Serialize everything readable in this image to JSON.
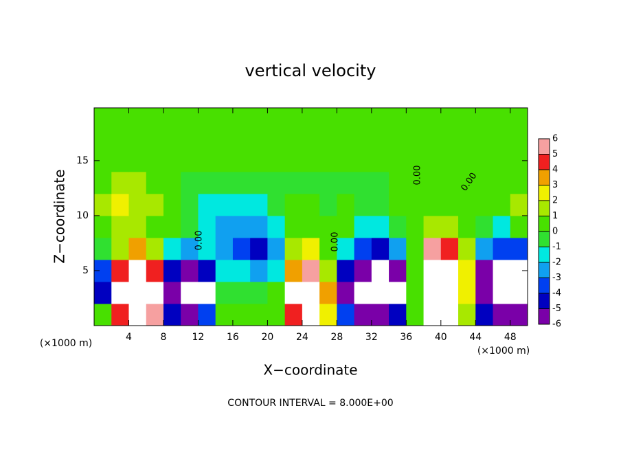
{
  "chart_data": {
    "type": "heatmap",
    "title": "vertical velocity",
    "x_label": "X−coordinate",
    "y_label": "Z−coordinate",
    "x_unit": "(×1000 m)",
    "y_unit": "(×1000 m)",
    "footer": "CONTOUR INTERVAL = 8.000E+00",
    "contour_labels": [
      "0.00",
      "0.00",
      "0.00",
      "0.00"
    ],
    "xlim": [
      0,
      50
    ],
    "ylim": [
      0,
      19.8
    ],
    "xticks": [
      4,
      8,
      12,
      16,
      20,
      24,
      28,
      32,
      36,
      40,
      44,
      48
    ],
    "yticks": [
      5,
      10,
      15
    ],
    "x": [
      1,
      3,
      5,
      7,
      9,
      11,
      13,
      15,
      17,
      19,
      21,
      23,
      25,
      27,
      29,
      31,
      33,
      35,
      37,
      39,
      41,
      43,
      45,
      47,
      49
    ],
    "y": [
      1,
      3,
      5,
      7,
      9,
      11,
      13,
      15,
      17,
      19
    ],
    "z": [
      [
        0.5,
        5,
        8,
        6,
        -4,
        -5,
        -3,
        0.5,
        0.5,
        0.5,
        0.5,
        5,
        7,
        3,
        -3,
        -6,
        -6,
        -4,
        0.5,
        8,
        8,
        2,
        -4,
        -6,
        -6
      ],
      [
        -4,
        7,
        10,
        7,
        -5,
        -8,
        -7,
        -0.5,
        -0.5,
        -0.5,
        0.5,
        7,
        9,
        4,
        -5,
        -8,
        -8,
        -7,
        0.5,
        10,
        10,
        3,
        -5,
        -8,
        -8
      ],
      [
        -3,
        5,
        9,
        5,
        -4,
        -5,
        -4,
        -1,
        -1.5,
        -2,
        -1,
        4,
        6,
        2,
        -4,
        -6,
        -7,
        -5,
        0.5,
        10,
        9,
        3,
        -5,
        -8,
        -7
      ],
      [
        -0.5,
        2,
        4,
        2,
        -1,
        -2,
        -1,
        -2,
        -3,
        -4,
        -2,
        2,
        3,
        1,
        -1,
        -3,
        -4,
        -2,
        0.5,
        6,
        5,
        2,
        -2,
        -3,
        -3
      ],
      [
        0.5,
        1.5,
        2,
        1,
        0.5,
        -0.5,
        -1,
        -2,
        -2.5,
        -2,
        -1,
        0.5,
        0.5,
        0.5,
        0.5,
        -1,
        -1,
        -0.5,
        0.5,
        2,
        2,
        1,
        -0.5,
        -1,
        0.5
      ],
      [
        1.5,
        3,
        2,
        1.5,
        0.5,
        -0.5,
        -1,
        -1.5,
        -1.5,
        -1,
        -0.5,
        0.5,
        0.5,
        -0.5,
        0.5,
        -0.5,
        -0.5,
        0.5,
        0.5,
        1,
        1,
        0.5,
        0.5,
        1,
        2
      ],
      [
        0.5,
        1.5,
        1.5,
        1,
        0.5,
        -0.5,
        -0.5,
        -0.5,
        -0.5,
        -0.5,
        -0.5,
        -0.5,
        -0.5,
        -0.5,
        -0.5,
        -0.5,
        -0.5,
        0.5,
        0.5,
        0.5,
        0.5,
        0.5,
        0.5,
        0.5,
        1
      ],
      [
        0.5,
        1,
        1,
        0.5,
        0.5,
        0.5,
        0.5,
        0.5,
        0.5,
        0.5,
        0.5,
        0.5,
        0.5,
        0.5,
        0.5,
        0.5,
        0.5,
        0.5,
        0.5,
        0.5,
        0.5,
        0.5,
        0.5,
        0.5,
        0.5
      ],
      [
        0.5,
        0.5,
        0.5,
        0.5,
        0.5,
        0.5,
        0.5,
        0.5,
        0.5,
        0.5,
        0.5,
        0.5,
        0.5,
        0.5,
        0.5,
        0.5,
        0.5,
        0.5,
        0.5,
        0.5,
        0.5,
        0.5,
        0.5,
        0.5,
        0.5
      ],
      [
        0.5,
        0.5,
        0.5,
        0.5,
        0.5,
        0.5,
        0.5,
        0.5,
        0.5,
        0.5,
        0.5,
        0.5,
        0.5,
        0.5,
        0.5,
        0.5,
        0.5,
        0.5,
        0.5,
        0.5,
        0.5,
        0.5,
        0.5,
        0.5,
        0.5
      ]
    ],
    "levels": [
      -6,
      -5,
      -4,
      -3,
      -2,
      -1,
      0,
      1,
      2,
      3,
      4,
      5,
      6
    ],
    "colors": [
      "#7a00a8",
      "#0000c0",
      "#0040f0",
      "#10a0f0",
      "#00e8e0",
      "#30e030",
      "#48e000",
      "#a8e800",
      "#f0f000",
      "#f0a000",
      "#f02020",
      "#f6a0a0"
    ],
    "out_of_range_color": "#ffffff"
  }
}
